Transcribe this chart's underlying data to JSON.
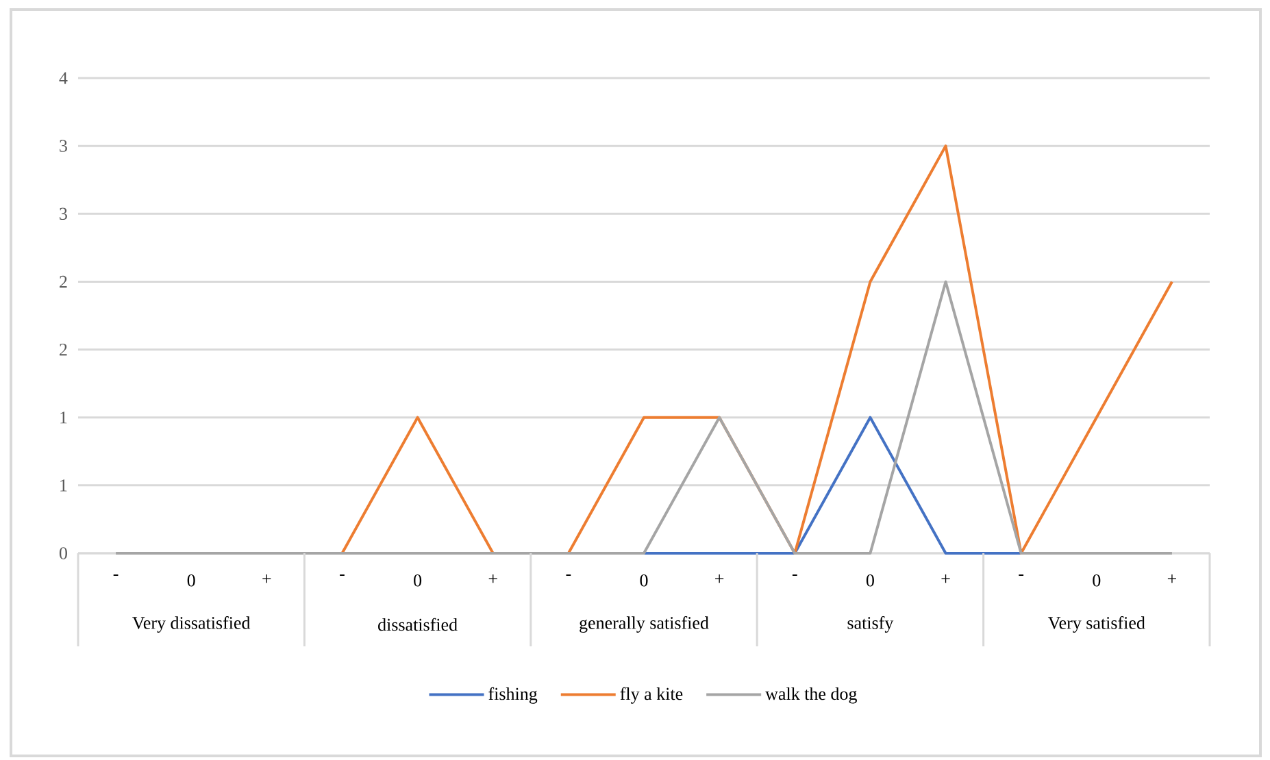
{
  "chart_data": {
    "type": "line",
    "categories": [
      "-",
      "0",
      "+",
      "-",
      "0",
      "+",
      "-",
      "0",
      "+",
      "-",
      "0",
      "+",
      "-",
      "0",
      "+"
    ],
    "annotations": [
      "Very dissatisfied",
      "dissatisfied",
      "generally satisfied",
      "satisfy",
      "Very satisfied"
    ],
    "series": [
      {
        "name": "fishing",
        "color": "#4472c4",
        "values": [
          null,
          null,
          null,
          null,
          null,
          null,
          null,
          0,
          0,
          0,
          1,
          0,
          0,
          null,
          null
        ]
      },
      {
        "name": "fly a kite",
        "color": "#ed7d31",
        "values": [
          null,
          null,
          null,
          0,
          1,
          0,
          0,
          1,
          1,
          0,
          2,
          3,
          0,
          1,
          2
        ]
      },
      {
        "name": "walk the dog",
        "color": "#a5a5a5",
        "values": [
          0,
          0,
          0,
          0,
          0,
          0,
          0,
          0,
          1,
          0,
          0,
          2,
          0,
          0,
          0
        ]
      }
    ],
    "ylim": [
      0,
      3.5
    ],
    "yticks": [
      0,
      {
        "value": 0.5,
        "label": "1"
      },
      1,
      {
        "value": 1.5,
        "label": "2"
      },
      2,
      {
        "value": 2.5,
        "label": "3"
      },
      3,
      {
        "value": 3.5,
        "label": "4"
      }
    ],
    "grid": "y",
    "legend": "bottom",
    "marker": "none"
  }
}
